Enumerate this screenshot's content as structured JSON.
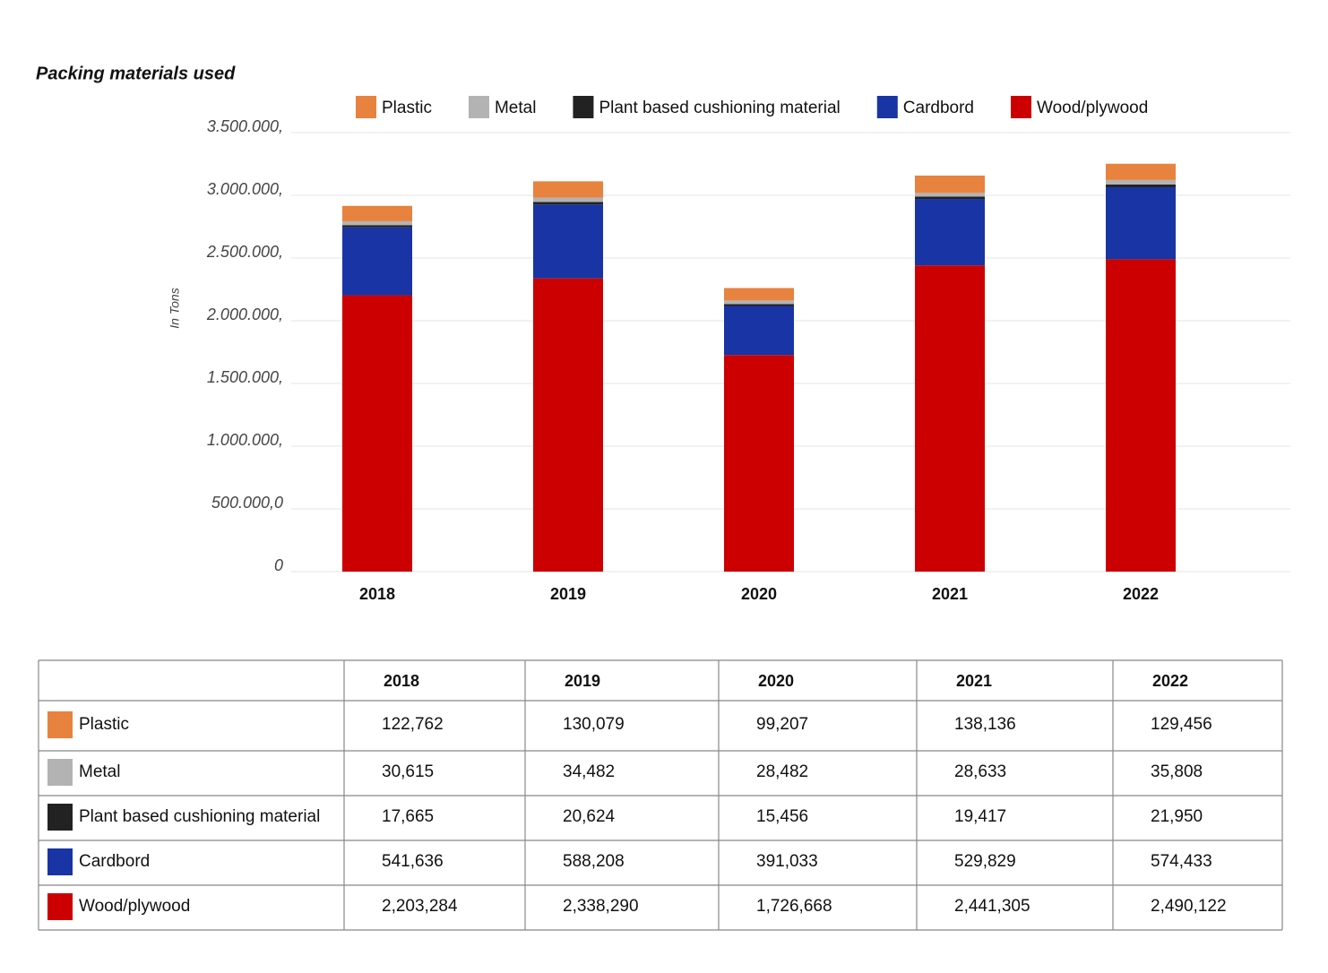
{
  "chart_data": {
    "type": "bar",
    "stacked": true,
    "title": "Packing materials used",
    "y_label": "In Tons",
    "categories": [
      "2018",
      "2019",
      "2020",
      "2021",
      "2022"
    ],
    "series": [
      {
        "name": "Plastic",
        "color": "#e8823f",
        "values": [
          122762,
          130079,
          99207,
          138136,
          129456
        ],
        "value_labels": [
          "122,762",
          "130,079",
          "99,207",
          "138,136",
          "129,456"
        ]
      },
      {
        "name": "Metal",
        "color": "#b3b3b3",
        "values": [
          30615,
          34482,
          28482,
          28633,
          35808
        ],
        "value_labels": [
          "30,615",
          "34,482",
          "28,482",
          "28,633",
          "35,808"
        ]
      },
      {
        "name": "Plant based cushioning material",
        "color": "#222222",
        "values": [
          17665,
          20624,
          15456,
          19417,
          21950
        ],
        "value_labels": [
          "17,665",
          "20,624",
          "15,456",
          "19,417",
          "21,950"
        ]
      },
      {
        "name": "Cardbord",
        "color": "#1834a5",
        "values": [
          541636,
          588208,
          391033,
          529829,
          574433
        ],
        "value_labels": [
          "541,636",
          "588,208",
          "391,033",
          "529,829",
          "574,433"
        ]
      },
      {
        "name": "Wood/plywood",
        "color": "#cc0000",
        "values": [
          2203284,
          2338290,
          1726668,
          2441305,
          2490122
        ],
        "value_labels": [
          "2,203,284",
          "2,338,290",
          "1,726,668",
          "2,441,305",
          "2,490,122"
        ]
      }
    ],
    "ylim": [
      0,
      3500000
    ],
    "yticks": [
      0,
      {
        "value": 500000,
        "label": "500.000,0"
      },
      {
        "value": 1000000,
        "label": "1.000.000,"
      },
      {
        "value": 1500000,
        "label": "1.500.000,"
      },
      {
        "value": 2000000,
        "label": "2.000.000,"
      },
      {
        "value": 2500000,
        "label": "2.500.000,"
      },
      {
        "value": 3000000,
        "label": "3.000.000,"
      },
      {
        "value": 3500000,
        "label": "3.500.000,"
      }
    ],
    "grid": true
  }
}
